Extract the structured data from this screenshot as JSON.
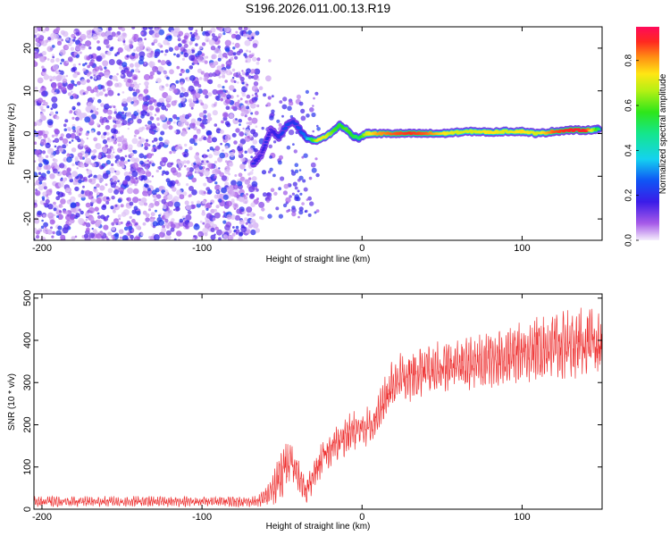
{
  "chart_data": [
    {
      "type": "heatmap",
      "title": "S196.2026.011.00.13.R19",
      "xlabel": "Height of straight line (km)",
      "ylabel": "Frequency (Hz)",
      "xlim": [
        -205,
        150
      ],
      "ylim": [
        -25,
        25
      ],
      "xticks": [
        "-200",
        "-100",
        "0",
        "100"
      ],
      "xtick_values": [
        -200,
        -100,
        0,
        100
      ],
      "yticks": [
        "-20",
        "-10",
        "0",
        "10",
        "20"
      ],
      "ytick_values": [
        -20,
        -10,
        0,
        10,
        20
      ],
      "colorbar": {
        "label": "Normalized spectral amplitude",
        "ticks": [
          "0.0",
          "0.2",
          "0.4",
          "0.6",
          "0.8"
        ],
        "tick_values": [
          0.0,
          0.2,
          0.4,
          0.6,
          0.8
        ],
        "range": [
          0,
          0.95
        ]
      },
      "noise_region_x": [
        -205,
        -65
      ],
      "signal_track": [
        {
          "x": -68,
          "y": -7,
          "v": 0.2
        },
        {
          "x": -63,
          "y": -5,
          "v": 0.15
        },
        {
          "x": -60,
          "y": -2,
          "v": 0.2
        },
        {
          "x": -57,
          "y": 1,
          "v": 0.15
        },
        {
          "x": -52,
          "y": -1,
          "v": 0.2
        },
        {
          "x": -47,
          "y": 2,
          "v": 0.25
        },
        {
          "x": -43,
          "y": 3,
          "v": 0.2
        },
        {
          "x": -39,
          "y": 1,
          "v": 0.25
        },
        {
          "x": -35,
          "y": -1,
          "v": 0.3
        },
        {
          "x": -31,
          "y": -1.5,
          "v": 0.55
        },
        {
          "x": -27,
          "y": -1.5,
          "v": 0.75
        },
        {
          "x": -22,
          "y": -0.5,
          "v": 0.7
        },
        {
          "x": -18,
          "y": 0.5,
          "v": 0.6
        },
        {
          "x": -14,
          "y": 2,
          "v": 0.55
        },
        {
          "x": -10,
          "y": 1,
          "v": 0.6
        },
        {
          "x": -6,
          "y": -0.5,
          "v": 0.55
        },
        {
          "x": -2,
          "y": -1,
          "v": 0.5
        },
        {
          "x": 3,
          "y": 0,
          "v": 0.7
        },
        {
          "x": 10,
          "y": 0,
          "v": 0.8
        },
        {
          "x": 20,
          "y": 0,
          "v": 0.85
        },
        {
          "x": 30,
          "y": 0,
          "v": 0.88
        },
        {
          "x": 40,
          "y": 0,
          "v": 0.85
        },
        {
          "x": 50,
          "y": 0,
          "v": 0.75
        },
        {
          "x": 60,
          "y": 0.3,
          "v": 0.7
        },
        {
          "x": 70,
          "y": 0.5,
          "v": 0.7
        },
        {
          "x": 80,
          "y": 0.3,
          "v": 0.75
        },
        {
          "x": 90,
          "y": 0.5,
          "v": 0.7
        },
        {
          "x": 100,
          "y": 0.5,
          "v": 0.75
        },
        {
          "x": 110,
          "y": 0,
          "v": 0.7
        },
        {
          "x": 120,
          "y": 0.5,
          "v": 0.85
        },
        {
          "x": 130,
          "y": 0.8,
          "v": 0.9
        },
        {
          "x": 140,
          "y": 0.8,
          "v": 0.9
        },
        {
          "x": 148,
          "y": 1,
          "v": 0.5
        }
      ]
    },
    {
      "type": "line",
      "xlabel": "Height of straight line (km)",
      "ylabel": "SNR (10 * v/v)",
      "xlim": [
        -205,
        150
      ],
      "ylim": [
        0,
        510
      ],
      "xticks": [
        "-200",
        "-100",
        "0",
        "100"
      ],
      "xtick_values": [
        -200,
        -100,
        0,
        100
      ],
      "yticks": [
        "0",
        "100",
        "200",
        "300",
        "400",
        "500"
      ],
      "ytick_values": [
        0,
        100,
        200,
        300,
        400,
        500
      ],
      "color": "#ee3333",
      "series": [
        {
          "name": "SNR",
          "x": [
            -205,
            -65,
            -58,
            -50,
            -45,
            -40,
            -35,
            -30,
            -25,
            -20,
            -15,
            -10,
            -5,
            0,
            5,
            10,
            15,
            20,
            30,
            40,
            50,
            60,
            70,
            80,
            90,
            100,
            110,
            120,
            130,
            140,
            150
          ],
          "mean": [
            18,
            18,
            35,
            90,
            110,
            80,
            45,
            80,
            120,
            140,
            160,
            175,
            185,
            190,
            200,
            225,
            260,
            300,
            315,
            330,
            335,
            340,
            345,
            355,
            360,
            375,
            380,
            385,
            390,
            390,
            385
          ],
          "spread": [
            12,
            12,
            30,
            60,
            50,
            40,
            30,
            40,
            40,
            40,
            45,
            45,
            45,
            45,
            45,
            50,
            55,
            60,
            60,
            60,
            60,
            60,
            60,
            65,
            65,
            70,
            75,
            80,
            80,
            80,
            80
          ]
        }
      ]
    }
  ]
}
